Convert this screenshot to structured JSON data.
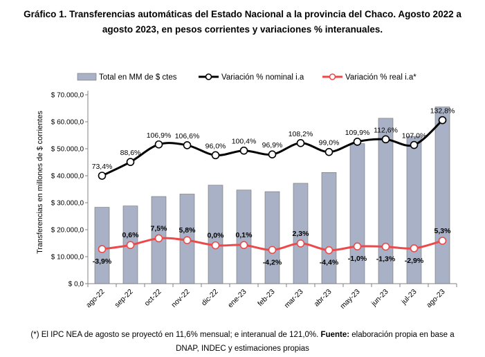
{
  "title_line1": "Gráfico 1. Transferencias automáticas del Estado Nacional a la provincia del Chaco. Agosto 2022 a",
  "title_line2": "agosto 2023, en pesos corrientes y variaciones % interanuales.",
  "footnote": {
    "line1_part1": "(*) El IPC NEA de agosto se proyectó en 11,6% mensual; e interanual de 121,0%. ",
    "line1_bold": "Fuente:",
    "line1_part2": " elaboración propia en base a",
    "line2": "DNAP, INDEC y estimaciones propias"
  },
  "chart_data": {
    "type": "bar",
    "categories": [
      "ago-22",
      "sep-22",
      "oct-22",
      "nov-22",
      "dic-22",
      "ene-23",
      "feb-23",
      "mar-23",
      "abr-23",
      "may-23",
      "jun-23",
      "jul-23",
      "ago-23"
    ],
    "ylabel": "Transferencias en millones de $ corrientes",
    "ylim": [
      0,
      70000
    ],
    "yticks": [
      "$ 0,0",
      "$ 10.000,0",
      "$ 20.000,0",
      "$ 30.000,0",
      "$ 40.000,0",
      "$ 50.000,0",
      "$ 60.000,0",
      "$ 70.000,0"
    ],
    "legend_position": "top",
    "grid": false,
    "series": [
      {
        "name": "Total en MM de $ ctes",
        "kind": "bar",
        "color": "#a9b1c6",
        "values": [
          28300,
          28800,
          32300,
          33200,
          36500,
          34700,
          34100,
          37200,
          41200,
          51900,
          61300,
          54600,
          65500
        ]
      },
      {
        "name": "Variación % nominal i.a",
        "kind": "line",
        "color": "#000000",
        "values": [
          40000,
          45100,
          51600,
          51300,
          47600,
          49300,
          47900,
          52100,
          48800,
          52600,
          53500,
          51400,
          60600
        ],
        "labels": [
          "73,4%",
          "88,6%",
          "106,9%",
          "106,6%",
          "96,0%",
          "100,4%",
          "96,9%",
          "108,2%",
          "99,0%",
          "109,9%",
          "112,6%",
          "107,0%",
          "132,8%"
        ]
      },
      {
        "name": "Variación % real i.a*",
        "kind": "line",
        "color": "#ec4a4a",
        "values": [
          12800,
          14300,
          16800,
          16100,
          14200,
          14300,
          12500,
          14900,
          12400,
          13800,
          13700,
          13100,
          15900
        ],
        "labels": [
          "-3,9%",
          "0,6%",
          "7,5%",
          "5,8%",
          "0,0%",
          "0,1%",
          "-4,2%",
          "2,3%",
          "-4,4%",
          "-1,0%",
          "-1,3%",
          "-2,9%",
          "5,3%"
        ]
      }
    ]
  }
}
